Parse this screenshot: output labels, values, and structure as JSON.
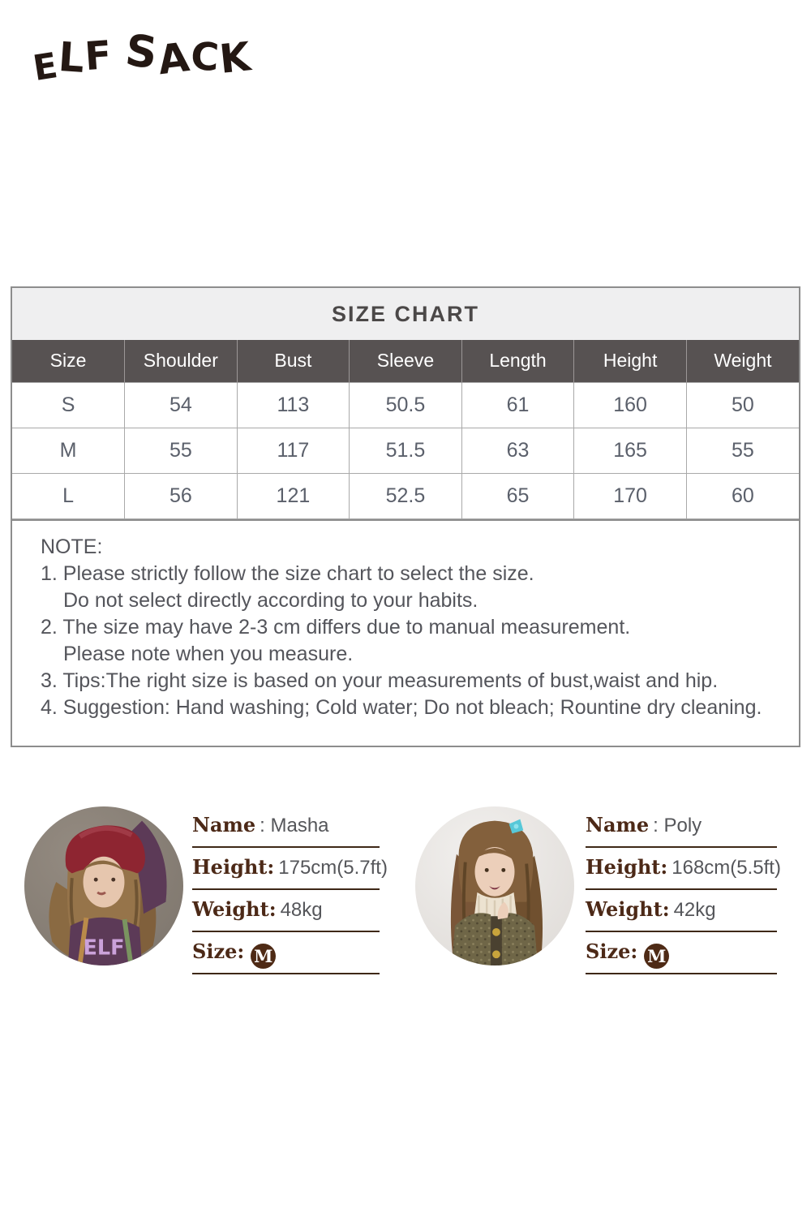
{
  "brand": {
    "logo_text": "ELF SACK"
  },
  "size_chart": {
    "title": "SIZE CHART",
    "columns": [
      "Size",
      "Shoulder",
      "Bust",
      "Sleeve",
      "Length",
      "Height",
      "Weight"
    ],
    "rows": [
      [
        "S",
        "54",
        "113",
        "50.5",
        "61",
        "160",
        "50"
      ],
      [
        "M",
        "55",
        "117",
        "51.5",
        "63",
        "165",
        "55"
      ],
      [
        "L",
        "56",
        "121",
        "52.5",
        "65",
        "170",
        "60"
      ]
    ]
  },
  "note": {
    "heading": "NOTE:",
    "lines": [
      "1. Please strictly follow the size chart to select the size.",
      "Do not select directly according to your habits.",
      "2. The size may have 2-3 cm differs due to manual measurement.",
      "Please note when you measure.",
      "3. Tips:The right size is based on your measurements of bust,waist and hip.",
      "4. Suggestion: Hand washing; Cold water; Do not bleach; Rountine dry cleaning."
    ]
  },
  "models": [
    {
      "rows": [
        {
          "label": "Name",
          "value": ": Masha"
        },
        {
          "label": "Height:",
          "value": "175cm(5.7ft)"
        },
        {
          "label": "Weight:",
          "value": "48kg"
        },
        {
          "label": "Size:",
          "value": "M"
        }
      ],
      "photo_text": "ELF"
    },
    {
      "rows": [
        {
          "label": "Name",
          "value": ": Poly"
        },
        {
          "label": "Height:",
          "value": "168cm(5.5ft)"
        },
        {
          "label": "Weight:",
          "value": "42kg"
        },
        {
          "label": "Size:",
          "value": "M"
        }
      ]
    }
  ],
  "colors": {
    "header_row_bg": "#575252",
    "title_band_bg": "#efeff0",
    "label_brown": "#4c2917",
    "badge_brown": "#4e2a15",
    "table_text": "#5b606b",
    "note_text": "#54555b"
  }
}
